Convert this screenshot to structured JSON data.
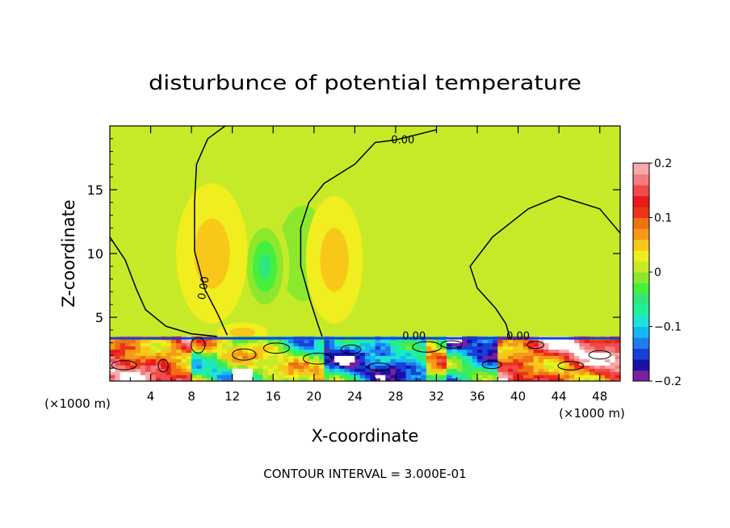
{
  "chart_data": {
    "type": "heatmap",
    "title": "disturbunce of potential temperature",
    "xlabel": "X-coordinate",
    "ylabel": "Z-coordinate",
    "x_unit_left": "(×1000 m)",
    "x_unit_right": "(×1000 m)",
    "footer": "CONTOUR INTERVAL = 3.000E-01",
    "xlim": [
      0,
      50
    ],
    "ylim": [
      0,
      20
    ],
    "x_ticks": [
      4,
      8,
      12,
      16,
      20,
      24,
      28,
      32,
      36,
      40,
      44,
      48
    ],
    "x_tick_labels": [
      "4",
      "8",
      "12",
      "16",
      "20",
      "24",
      "28",
      "32",
      "36",
      "40",
      "44",
      "48"
    ],
    "y_ticks": [
      5,
      10,
      15
    ],
    "y_tick_labels": [
      "5",
      "10",
      "15"
    ],
    "colorbar": {
      "range": [
        -0.2,
        0.2
      ],
      "ticks": [
        0.2,
        0.1,
        0,
        -0.1,
        -0.2
      ],
      "tick_labels": [
        "0.2",
        "0.1",
        "0",
        "−0.1",
        "−0.2"
      ],
      "colors": [
        "#7a1fa0",
        "#1a0fa8",
        "#1640d8",
        "#1f7cf0",
        "#14b8f5",
        "#1de3d6",
        "#1ef0a0",
        "#2ee87a",
        "#46ef3e",
        "#8ce82c",
        "#c6ea28",
        "#f0ee1e",
        "#f7c81a",
        "#f59a16",
        "#f07014",
        "#ec3418",
        "#e81a1a",
        "#f04a4a",
        "#f47c7c",
        "#f8a8a8"
      ]
    },
    "background_value": 0.02,
    "features": [
      {
        "kind": "blob",
        "x": 19,
        "z": 10,
        "rx": 5,
        "rz": 7.5,
        "value": -0.02
      },
      {
        "kind": "blob",
        "x": 15.2,
        "z": 9,
        "rx": 2.4,
        "rz": 4,
        "value": -0.06
      },
      {
        "kind": "blob",
        "x": 10,
        "z": 10,
        "rx": 3.5,
        "rz": 5.5,
        "value": 0.05
      },
      {
        "kind": "blob",
        "x": 22,
        "z": 9.5,
        "rx": 2.8,
        "rz": 5,
        "value": 0.055
      },
      {
        "kind": "blob",
        "x": 13,
        "z": 3.8,
        "rx": 2.5,
        "rz": 0.8,
        "value": 0.05
      }
    ],
    "contour_labels": [
      {
        "text": "0.00",
        "x": 28.7,
        "z": 18.9
      },
      {
        "text": "0.00",
        "x": 9.5,
        "z": 7.5
      },
      {
        "text": "0.00",
        "x": 29.8,
        "z": 3.5
      },
      {
        "text": "0.00",
        "x": 40,
        "z": 3.5
      }
    ]
  }
}
